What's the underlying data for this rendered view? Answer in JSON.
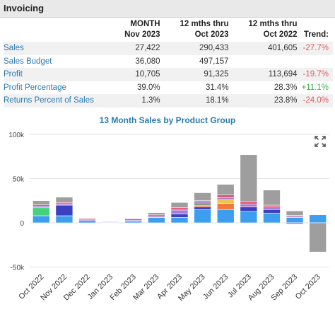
{
  "section_title": "Invoicing",
  "table": {
    "headers": [
      {
        "line1": "",
        "line2": ""
      },
      {
        "line1": "MONTH",
        "line2": "Nov 2023"
      },
      {
        "line1": "12 mths thru",
        "line2": "Oct 2023"
      },
      {
        "line1": "12 mths thru",
        "line2": "Oct 2022"
      },
      {
        "line1": "",
        "line2": "Trend:"
      }
    ],
    "rows": [
      {
        "label": "Sales",
        "c1": "27,422",
        "c2": "290,433",
        "c3": "401,605",
        "trend": "-27.7%",
        "trend_dir": "neg"
      },
      {
        "label": "Sales Budget",
        "c1": "36,080",
        "c2": "497,157",
        "c3": "",
        "trend": "",
        "trend_dir": ""
      },
      {
        "label": "Profit",
        "c1": "10,705",
        "c2": "91,325",
        "c3": "113,694",
        "trend": "-19.7%",
        "trend_dir": "neg"
      },
      {
        "label": "Profit Percentage",
        "c1": "39.0%",
        "c2": "31.4%",
        "c3": "28.3%",
        "trend": "+11.1%",
        "trend_dir": "pos"
      },
      {
        "label": "Returns Percent of Sales",
        "c1": "1.3%",
        "c2": "18.1%",
        "c3": "23.8%",
        "trend": "-24.0%",
        "trend_dir": "neg"
      }
    ]
  },
  "expand_icon": "expand-icon",
  "chart_data": {
    "type": "bar",
    "stacked": true,
    "title": "13 Month Sales by Product Group",
    "categories": [
      "Oct 2022",
      "Nov 2022",
      "Dec 2022",
      "Jan 2023",
      "Feb 2023",
      "Mar 2023",
      "Apr 2023",
      "May 2023",
      "Jun 2023",
      "Jul 2023",
      "Aug 2023",
      "Sep 2023",
      "Oct 2023"
    ],
    "yticks": [
      -50000,
      0,
      50000,
      100000
    ],
    "ytick_labels": [
      "-50k",
      "0",
      "50k",
      "100k"
    ],
    "ylim": [
      -52000,
      100000
    ],
    "grid": true,
    "legend": "none",
    "series": [
      {
        "color": "#3d9ef0",
        "values": [
          8000,
          8000,
          2500,
          500,
          1500,
          6000,
          6000,
          15000,
          15000,
          13000,
          11000,
          6000,
          9000
        ]
      },
      {
        "color": "#44d27a",
        "values": [
          9000,
          0,
          0,
          0,
          0,
          0,
          0,
          0,
          0,
          0,
          0,
          0,
          0
        ]
      },
      {
        "color": "#3b3fc0",
        "values": [
          0,
          12000,
          0,
          0,
          0,
          0,
          4000,
          3000,
          0,
          5000,
          4000,
          0,
          0
        ]
      },
      {
        "color": "#f07a3a",
        "values": [
          0,
          0,
          0,
          0,
          0,
          0,
          0,
          1500,
          7000,
          0,
          0,
          0,
          0
        ]
      },
      {
        "color": "#f0c34a",
        "values": [
          0,
          0,
          0,
          0,
          0,
          0,
          0,
          0,
          4000,
          0,
          0,
          0,
          0
        ]
      },
      {
        "color": "#2e7d32",
        "values": [
          0,
          0,
          0,
          0,
          0,
          0,
          0,
          1500,
          0,
          0,
          0,
          0,
          0
        ]
      },
      {
        "color": "#a97dd6",
        "values": [
          2000,
          1500,
          1500,
          500,
          1500,
          1500,
          4500,
          2500,
          2500,
          3000,
          3000,
          1500,
          0
        ]
      },
      {
        "color": "#e8516f",
        "values": [
          1500,
          1500,
          1000,
          500,
          1500,
          1500,
          2500,
          1500,
          3000,
          3000,
          2000,
          1000,
          0
        ]
      },
      {
        "color": "#9e9e9e",
        "values": [
          4500,
          6000,
          0,
          0,
          0,
          2500,
          6000,
          9000,
          12000,
          53000,
          17000,
          5000,
          0
        ]
      },
      {
        "color": "#e8516f",
        "values": [
          0,
          0,
          0,
          0,
          0,
          0,
          0,
          0,
          0,
          0,
          0,
          -1500,
          0
        ]
      },
      {
        "color": "#9e9e9e",
        "values": [
          0,
          0,
          0,
          0,
          0,
          0,
          0,
          0,
          0,
          0,
          0,
          0,
          -33000
        ]
      }
    ]
  }
}
